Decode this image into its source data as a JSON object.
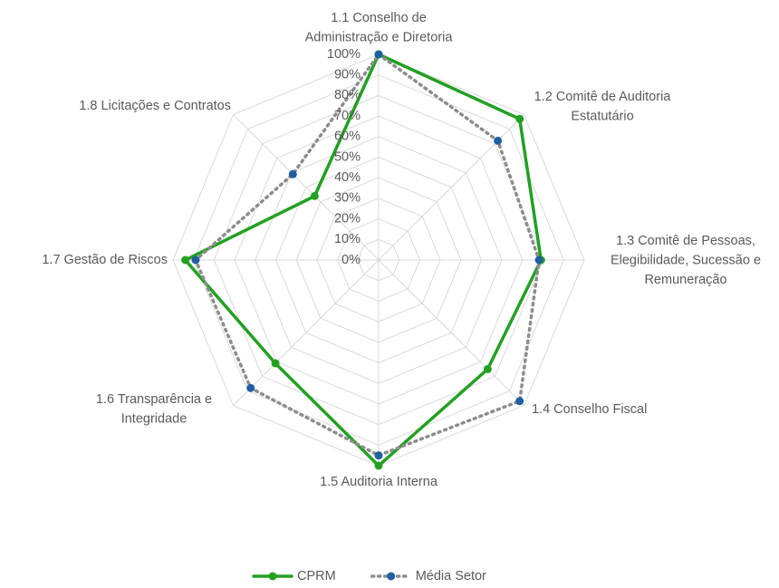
{
  "chart_data": {
    "type": "radar",
    "categories": [
      "1.1 Conselho de\nAdministração e Diretoria",
      "1.2 Comitê de Auditoria\nEstatutário",
      "1.3 Comitê de Pessoas,\nElegibilidade, Sucessão e\nRemuneração",
      "1.4 Conselho Fiscal",
      "1.5 Auditoria Interna",
      "1.6 Transparência e\nIntegridade",
      "1.7 Gestão de Riscos",
      "1.8 Licitações e Contratos"
    ],
    "series": [
      {
        "name": "CPRM",
        "color": "#22a022",
        "values": [
          100,
          97,
          79,
          75,
          100,
          71,
          94,
          44
        ]
      },
      {
        "name": "Média Setor",
        "color": "#1f5f9f",
        "values": [
          100,
          82,
          78,
          97,
          95,
          88,
          89,
          59
        ]
      }
    ],
    "ylim": [
      0,
      100
    ],
    "yticks": [
      {
        "value": 0,
        "label": "0%"
      },
      {
        "value": 10,
        "label": "10%"
      },
      {
        "value": 20,
        "label": "20%"
      },
      {
        "value": 30,
        "label": "30%"
      },
      {
        "value": 40,
        "label": "40%"
      },
      {
        "value": 50,
        "label": "50%"
      },
      {
        "value": 60,
        "label": "60%"
      },
      {
        "value": 70,
        "label": "70%"
      },
      {
        "value": 80,
        "label": "80%"
      },
      {
        "value": 90,
        "label": "90%"
      },
      {
        "value": 100,
        "label": "100%"
      }
    ],
    "grid": true,
    "legend": "bottom"
  }
}
